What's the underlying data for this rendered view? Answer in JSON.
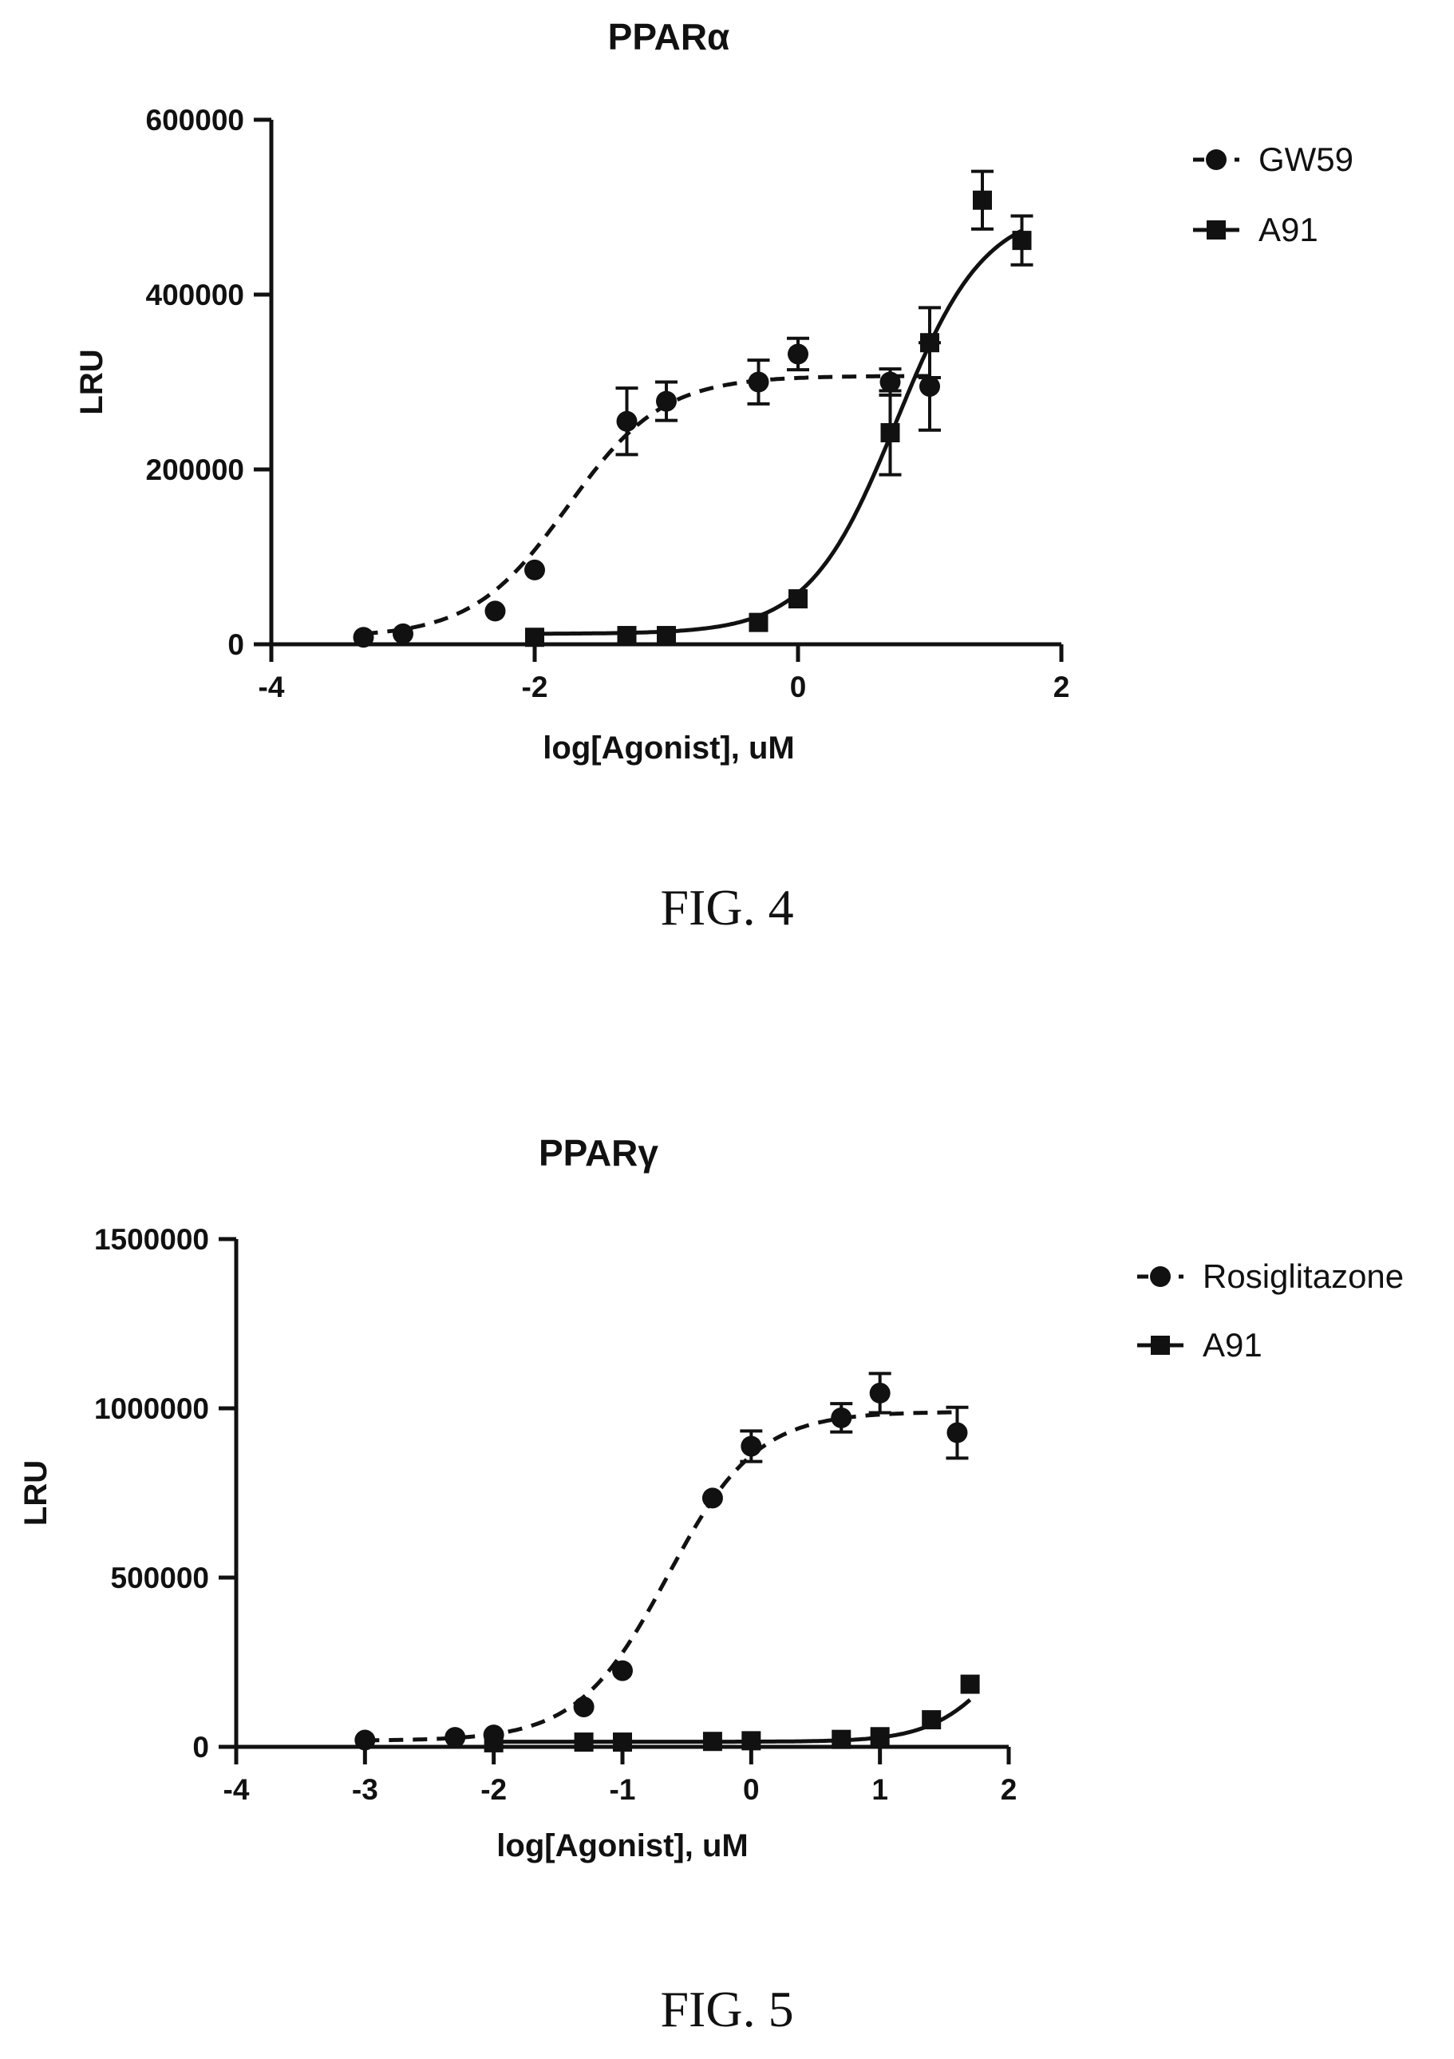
{
  "figures": [
    {
      "caption": "FIG. 4",
      "chart_data": {
        "type": "scatter",
        "title": "PPARα",
        "xlabel": "log[Agonist], uM",
        "ylabel": "LRU",
        "xlim": [
          -4,
          2
        ],
        "ylim": [
          0,
          600000
        ],
        "xticks": [
          -4,
          -2,
          0,
          2
        ],
        "yticks": [
          0,
          200000,
          400000,
          600000
        ],
        "grid": false,
        "legend_position": "top-right",
        "series": [
          {
            "name": "GW59",
            "marker": "circle",
            "line": "dashed",
            "color": "#111111",
            "points": [
              {
                "x": -3.3,
                "y": 8000
              },
              {
                "x": -3.0,
                "y": 12000
              },
              {
                "x": -2.3,
                "y": 38000
              },
              {
                "x": -2.0,
                "y": 85000
              },
              {
                "x": -1.3,
                "y": 255000,
                "err": 38000
              },
              {
                "x": -1.0,
                "y": 278000,
                "err": 22000
              },
              {
                "x": -0.3,
                "y": 300000,
                "err": 25000
              },
              {
                "x": 0.0,
                "y": 332000,
                "err": 18000
              },
              {
                "x": 0.7,
                "y": 300000,
                "err": 15000
              },
              {
                "x": 1.0,
                "y": 295000,
                "err": 50000
              }
            ],
            "fit": {
              "bottom": 8000,
              "top": 307000,
              "log_ec50": -1.75,
              "hill": 1.2
            }
          },
          {
            "name": "A91",
            "marker": "square",
            "line": "solid",
            "color": "#111111",
            "points": [
              {
                "x": -2.0,
                "y": 8000
              },
              {
                "x": -1.3,
                "y": 10000
              },
              {
                "x": -1.0,
                "y": 10000
              },
              {
                "x": -0.3,
                "y": 25000
              },
              {
                "x": 0.0,
                "y": 52000
              },
              {
                "x": 0.7,
                "y": 242000,
                "err": 48000
              },
              {
                "x": 1.0,
                "y": 345000,
                "err": 40000
              },
              {
                "x": 1.4,
                "y": 508000,
                "err": 33000
              },
              {
                "x": 1.7,
                "y": 462000,
                "err": 28000
              }
            ],
            "fit": {
              "bottom": 12000,
              "top": 500000,
              "log_ec50": 0.75,
              "hill": 1.3
            }
          }
        ]
      }
    },
    {
      "caption": "FIG. 5",
      "chart_data": {
        "type": "scatter",
        "title": "PPARγ",
        "xlabel": "log[Agonist], uM",
        "ylabel": "LRU",
        "xlim": [
          -4,
          2
        ],
        "ylim": [
          0,
          1500000
        ],
        "xticks": [
          -4,
          -3,
          -2,
          -1,
          0,
          1,
          2
        ],
        "yticks": [
          0,
          500000,
          1000000,
          1500000
        ],
        "grid": false,
        "legend_position": "top-right",
        "series": [
          {
            "name": "Rosiglitazone",
            "marker": "circle",
            "line": "dashed",
            "color": "#111111",
            "points": [
              {
                "x": -3.0,
                "y": 20000
              },
              {
                "x": -2.3,
                "y": 28000
              },
              {
                "x": -2.0,
                "y": 35000
              },
              {
                "x": -1.3,
                "y": 118000
              },
              {
                "x": -1.0,
                "y": 225000
              },
              {
                "x": -0.3,
                "y": 735000
              },
              {
                "x": 0.0,
                "y": 888000,
                "err": 45000
              },
              {
                "x": 0.7,
                "y": 972000,
                "err": 42000
              },
              {
                "x": 1.0,
                "y": 1045000,
                "err": 58000
              },
              {
                "x": 1.6,
                "y": 928000,
                "err": 75000
              }
            ],
            "fit": {
              "bottom": 18000,
              "top": 990000,
              "log_ec50": -0.65,
              "hill": 1.25
            }
          },
          {
            "name": "A91",
            "marker": "square",
            "line": "solid",
            "color": "#111111",
            "points": [
              {
                "x": -2.0,
                "y": 12000
              },
              {
                "x": -1.3,
                "y": 14000
              },
              {
                "x": -1.0,
                "y": 14000
              },
              {
                "x": -0.3,
                "y": 16000
              },
              {
                "x": 0.0,
                "y": 18000
              },
              {
                "x": 0.7,
                "y": 22000
              },
              {
                "x": 1.0,
                "y": 30000
              },
              {
                "x": 1.4,
                "y": 80000
              },
              {
                "x": 1.7,
                "y": 185000
              }
            ],
            "fit": {
              "bottom": 15000,
              "top": 450000,
              "log_ec50": 1.95,
              "hill": 1.6
            }
          }
        ]
      }
    }
  ]
}
